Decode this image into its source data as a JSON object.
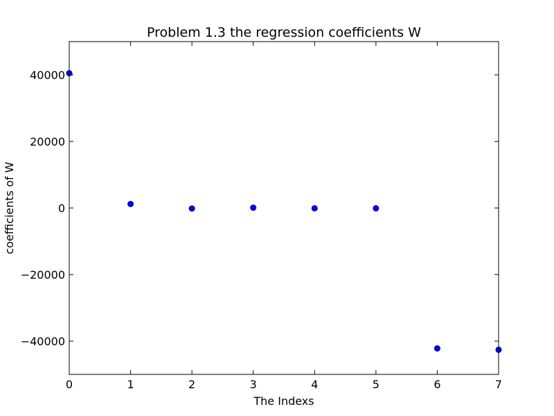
{
  "chart_data": {
    "type": "scatter",
    "title": "Problem 1.3 the regression coefficients W",
    "xlabel": "The Indexs",
    "ylabel": "coefficients of W",
    "xlim": [
      0,
      7
    ],
    "ylim": [
      -50000,
      50000
    ],
    "xticks": [
      0,
      1,
      2,
      3,
      4,
      5,
      6,
      7
    ],
    "xtick_labels": [
      "0",
      "1",
      "2",
      "3",
      "4",
      "5",
      "6",
      "7"
    ],
    "yticks": [
      -40000,
      -20000,
      0,
      20000,
      40000
    ],
    "ytick_labels": [
      "−40000",
      "−20000",
      "0",
      "20000",
      "40000"
    ],
    "grid": false,
    "marker_color": "#0000ff",
    "marker_edge_color": "#000080",
    "series": [
      {
        "x": [
          0,
          1,
          2,
          3,
          4,
          5,
          6,
          7
        ],
        "y": [
          40500,
          1200,
          -150,
          100,
          -100,
          -80,
          -42200,
          -42600
        ]
      }
    ]
  }
}
